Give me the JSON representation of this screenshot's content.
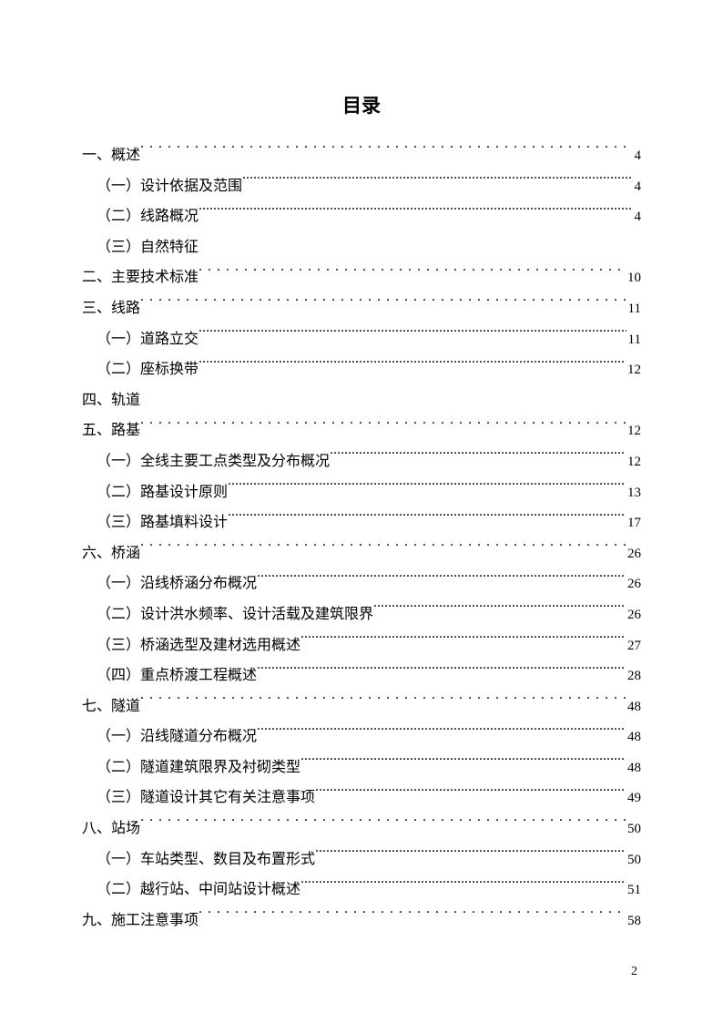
{
  "title": "目录",
  "entries": [
    {
      "level": 1,
      "label": "一、概述",
      "page": "4",
      "dots": "sparse"
    },
    {
      "level": 2,
      "label": "（一）设计依据及范围",
      "page": "4",
      "dots": "dense"
    },
    {
      "level": 2,
      "label": "（二）线路概况",
      "page": "4",
      "dots": "dense"
    },
    {
      "level": 2,
      "label": "（三）自然特征",
      "page": "",
      "dots": "none"
    },
    {
      "level": 1,
      "label": "二、主要技术标准",
      "page": "10",
      "dots": "sparse"
    },
    {
      "level": 1,
      "label": "三、线路",
      "page": "11",
      "dots": "sparse"
    },
    {
      "level": 2,
      "label": "（一）道路立交",
      "page": "11",
      "dots": "dense"
    },
    {
      "level": 2,
      "label": "（二）座标换带",
      "page": "12",
      "dots": "dense"
    },
    {
      "level": 1,
      "label": "四、轨道",
      "page": "",
      "dots": "none"
    },
    {
      "level": 1,
      "label": "五、路基",
      "page": "12",
      "dots": "sparse"
    },
    {
      "level": 2,
      "label": "（一）全线主要工点类型及分布概况",
      "page": "12",
      "dots": "dense"
    },
    {
      "level": 2,
      "label": "（二）路基设计原则",
      "page": "13",
      "dots": "dense"
    },
    {
      "level": 2,
      "label": "（三）路基填料设计",
      "page": "17",
      "dots": "dense"
    },
    {
      "level": 1,
      "label": "六、桥涵",
      "page": "26",
      "dots": "sparse"
    },
    {
      "level": 2,
      "label": "（一）沿线桥涵分布概况",
      "page": "26",
      "dots": "dense"
    },
    {
      "level": 2,
      "label": "（二）设计洪水频率、设计活载及建筑限界",
      "page": "26",
      "dots": "dense"
    },
    {
      "level": 2,
      "label": "（三）桥涵选型及建材选用概述",
      "page": "27",
      "dots": "dense"
    },
    {
      "level": 2,
      "label": "（四）重点桥渡工程概述",
      "page": "28",
      "dots": "dense"
    },
    {
      "level": 1,
      "label": "七、隧道",
      "page": "48",
      "dots": "sparse"
    },
    {
      "level": 2,
      "label": "（一）沿线隧道分布概况",
      "page": "48",
      "dots": "dense"
    },
    {
      "level": 2,
      "label": "（二）隧道建筑限界及衬砌类型",
      "page": "48",
      "dots": "dense"
    },
    {
      "level": 2,
      "label": "（三）隧道设计其它有关注意事项",
      "page": "49",
      "dots": "dense"
    },
    {
      "level": 1,
      "label": "八、站场",
      "page": "50",
      "dots": "sparse"
    },
    {
      "level": 2,
      "label": "（一）车站类型、数目及布置形式",
      "page": "50",
      "dots": "dense"
    },
    {
      "level": 2,
      "label": "（二）越行站、中间站设计概述",
      "page": "51",
      "dots": "dense"
    },
    {
      "level": 1,
      "label": "九、施工注意事项",
      "page": "58",
      "dots": "sparse"
    }
  ],
  "pageNumber": "2",
  "style": {
    "backgroundColor": "#ffffff",
    "textColor": "#000000",
    "titleFontSize": 21,
    "bodyFontSize": 16,
    "lineHeight": 2.1
  }
}
